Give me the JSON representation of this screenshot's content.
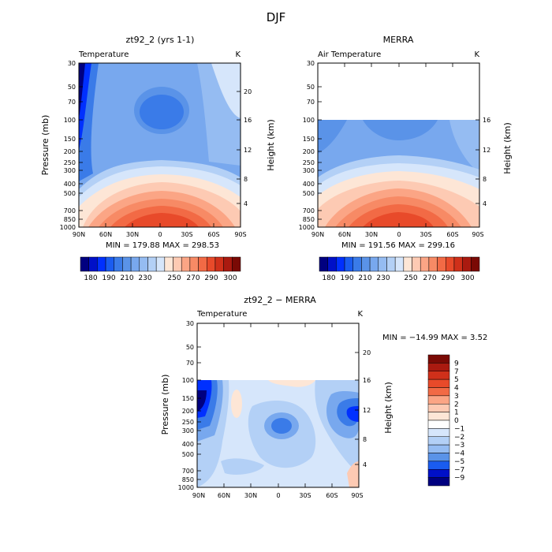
{
  "page_title": "DJF",
  "colors": {
    "cold": [
      "#000080",
      "#0010c8",
      "#0030ff",
      "#1a5cf0",
      "#3a7be8",
      "#5a93e8",
      "#78a8ee",
      "#95bcf2",
      "#b3d0f6",
      "#d6e6fb",
      "#fde6d6",
      "#fdcab3",
      "#fba585",
      "#f78a65",
      "#f26a45",
      "#e84a2a",
      "#d0301a",
      "#aa1a10",
      "#7a0a05"
    ]
  },
  "chart_data": [
    {
      "type": "contour",
      "panel_title": "zt92_2 (yrs 1-1)",
      "variable_label": "Temperature",
      "units_label": "K",
      "xlabel": "",
      "ylabel_left": "Pressure (mb)",
      "ylabel_right": "Height (km)",
      "x_ticklabels": [
        "90N",
        "60N",
        "30N",
        "0",
        "30S",
        "60S",
        "90S"
      ],
      "y_ticklabels": [
        "30",
        "50",
        "70",
        "100",
        "150",
        "200",
        "250",
        "300",
        "400",
        "500",
        "700",
        "850",
        "1000"
      ],
      "y_right_ticklabels": [
        "20",
        "16",
        "12",
        "8",
        "4"
      ],
      "min_max_text": "MIN = 179.88   MAX = 298.53",
      "colorbar_labels": [
        "180",
        "190",
        "210",
        "230",
        "250",
        "270",
        "290",
        "300"
      ],
      "data_top_pressure": 30
    },
    {
      "type": "contour",
      "panel_title": "MERRA",
      "variable_label": "Air Temperature",
      "units_label": "K",
      "xlabel": "",
      "ylabel_left": "",
      "ylabel_right": "Height (km)",
      "x_ticklabels": [
        "90N",
        "60N",
        "30N",
        "0",
        "30S",
        "60S",
        "90S"
      ],
      "y_ticklabels": [
        "30",
        "50",
        "70",
        "100",
        "150",
        "200",
        "250",
        "300",
        "400",
        "500",
        "700",
        "850",
        "1000"
      ],
      "y_right_ticklabels": [
        "16",
        "12",
        "8",
        "4"
      ],
      "min_max_text": "MIN = 191.56   MAX = 299.16",
      "colorbar_labels": [
        "180",
        "190",
        "210",
        "230",
        "250",
        "270",
        "290",
        "300"
      ],
      "data_top_pressure": 100
    },
    {
      "type": "contour",
      "panel_title": "zt92_2 − MERRA",
      "variable_label": "Temperature",
      "units_label": "K",
      "xlabel": "",
      "ylabel_left": "Pressure (mb)",
      "ylabel_right": "Height (km)",
      "x_ticklabels": [
        "90N",
        "60N",
        "30N",
        "0",
        "30S",
        "60S",
        "90S"
      ],
      "y_ticklabels": [
        "30",
        "50",
        "70",
        "100",
        "150",
        "200",
        "250",
        "300",
        "400",
        "500",
        "700",
        "850",
        "1000"
      ],
      "y_right_ticklabels": [
        "20",
        "16",
        "12",
        "8",
        "4"
      ],
      "min_max_text": "MIN = −14.99   MAX =    3.52",
      "colorbar_labels": [
        "9",
        "7",
        "5",
        "4",
        "3",
        "2",
        "1",
        "0",
        "−1",
        "−2",
        "−3",
        "−4",
        "−5",
        "−7",
        "−9"
      ],
      "data_top_pressure": 100
    }
  ]
}
